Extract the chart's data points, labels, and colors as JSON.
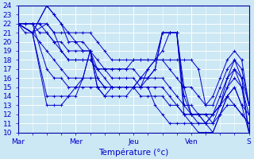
{
  "xlabel": "Température (°c)",
  "xlim": [
    0,
    96
  ],
  "ylim": [
    10,
    24
  ],
  "yticks": [
    10,
    11,
    12,
    13,
    14,
    15,
    16,
    17,
    18,
    19,
    20,
    21,
    22,
    23,
    24
  ],
  "xtick_positions": [
    0,
    24,
    48,
    72,
    96
  ],
  "xtick_labels": [
    "Mar",
    "Mer",
    "Jeu",
    "Ven",
    "S"
  ],
  "background_color": "#cce8f4",
  "grid_color": "#ffffff",
  "line_color": "#0000cc",
  "lines": [
    [
      0,
      22,
      3,
      21,
      6,
      21,
      9,
      20,
      12,
      19,
      15,
      18,
      18,
      17,
      21,
      16,
      24,
      16,
      27,
      16,
      30,
      16,
      33,
      16,
      36,
      15,
      39,
      15,
      42,
      15,
      45,
      15,
      48,
      15,
      51,
      14,
      54,
      14,
      57,
      14,
      60,
      14,
      63,
      13,
      66,
      13,
      69,
      12,
      72,
      12,
      75,
      12,
      78,
      12,
      81,
      12,
      84,
      13,
      87,
      14,
      90,
      15,
      93,
      13,
      96,
      10
    ],
    [
      0,
      22,
      3,
      22,
      6,
      22,
      9,
      21,
      12,
      21,
      15,
      20,
      18,
      19,
      21,
      18,
      24,
      18,
      27,
      18,
      30,
      18,
      33,
      17,
      36,
      17,
      39,
      16,
      42,
      16,
      45,
      16,
      48,
      16,
      51,
      15,
      54,
      15,
      57,
      15,
      60,
      15,
      63,
      14,
      66,
      13,
      69,
      12,
      72,
      12,
      75,
      11,
      78,
      11,
      81,
      12,
      84,
      13,
      87,
      15,
      90,
      17,
      93,
      15,
      96,
      12
    ],
    [
      0,
      22,
      3,
      22,
      6,
      22,
      9,
      22,
      12,
      21,
      15,
      20,
      18,
      20,
      21,
      19,
      24,
      19,
      27,
      19,
      30,
      19,
      33,
      18,
      36,
      17,
      39,
      17,
      42,
      17,
      45,
      17,
      48,
      17,
      51,
      16,
      54,
      16,
      57,
      16,
      60,
      16,
      63,
      15,
      66,
      14,
      69,
      13,
      72,
      13,
      75,
      12,
      78,
      11,
      81,
      12,
      84,
      14,
      87,
      16,
      90,
      18,
      93,
      16,
      96,
      13
    ],
    [
      0,
      22,
      3,
      22,
      6,
      22,
      9,
      22,
      12,
      22,
      15,
      21,
      18,
      21,
      21,
      21,
      24,
      21,
      27,
      21,
      30,
      21,
      33,
      20,
      36,
      19,
      39,
      18,
      42,
      18,
      45,
      18,
      48,
      18,
      51,
      18,
      54,
      18,
      57,
      18,
      60,
      18,
      63,
      17,
      66,
      16,
      69,
      15,
      72,
      15,
      75,
      14,
      78,
      13,
      81,
      14,
      84,
      16,
      87,
      18,
      90,
      19,
      93,
      18,
      96,
      13
    ],
    [
      0,
      22,
      6,
      21,
      12,
      24,
      15,
      23,
      18,
      22,
      21,
      21,
      24,
      20,
      27,
      20,
      30,
      19,
      33,
      17,
      36,
      16,
      39,
      15,
      42,
      15,
      45,
      15,
      48,
      15,
      51,
      15,
      54,
      17,
      57,
      18,
      60,
      19,
      63,
      21,
      66,
      21,
      69,
      15,
      72,
      12,
      75,
      12,
      78,
      12,
      81,
      12,
      84,
      13,
      87,
      16,
      90,
      17,
      93,
      16,
      96,
      10
    ],
    [
      0,
      22,
      6,
      21,
      12,
      24,
      15,
      23,
      18,
      22,
      21,
      20,
      24,
      20,
      27,
      19,
      30,
      19,
      33,
      16,
      36,
      15,
      39,
      15,
      42,
      15,
      45,
      15,
      48,
      15,
      51,
      16,
      54,
      17,
      57,
      18,
      60,
      21,
      63,
      21,
      66,
      21,
      69,
      14,
      72,
      12,
      75,
      12,
      78,
      11,
      81,
      11,
      84,
      13,
      87,
      15,
      90,
      16,
      93,
      15,
      96,
      10
    ],
    [
      0,
      22,
      6,
      21,
      12,
      22,
      15,
      21,
      18,
      19,
      21,
      18,
      24,
      18,
      27,
      18,
      30,
      18,
      33,
      17,
      36,
      17,
      39,
      17,
      42,
      17,
      45,
      17,
      48,
      18,
      51,
      18,
      54,
      18,
      57,
      18,
      60,
      18,
      63,
      18,
      66,
      18,
      69,
      18,
      72,
      18,
      75,
      17,
      78,
      13,
      81,
      13,
      84,
      15,
      87,
      17,
      90,
      18,
      93,
      17,
      96,
      13
    ],
    [
      0,
      22,
      6,
      21,
      12,
      14,
      15,
      14,
      18,
      14,
      21,
      14,
      24,
      15,
      27,
      16,
      30,
      19,
      33,
      15,
      36,
      14,
      39,
      15,
      42,
      15,
      45,
      15,
      48,
      15,
      51,
      16,
      54,
      16,
      57,
      17,
      60,
      21,
      63,
      21,
      66,
      21,
      69,
      13,
      72,
      12,
      75,
      12,
      78,
      12,
      81,
      11,
      84,
      12,
      87,
      14,
      90,
      13,
      93,
      12,
      96,
      11
    ],
    [
      0,
      22,
      6,
      21,
      12,
      13,
      15,
      13,
      18,
      13,
      21,
      14,
      24,
      14,
      27,
      16,
      30,
      19,
      33,
      15,
      36,
      14,
      39,
      14,
      42,
      14,
      45,
      14,
      48,
      15,
      51,
      15,
      54,
      16,
      57,
      17,
      60,
      21,
      63,
      21,
      66,
      21,
      69,
      12,
      72,
      11,
      75,
      11,
      78,
      11,
      81,
      10,
      84,
      12,
      87,
      13,
      90,
      13,
      93,
      12,
      96,
      11
    ],
    [
      0,
      22,
      6,
      22,
      12,
      17,
      15,
      16,
      18,
      16,
      21,
      15,
      24,
      15,
      27,
      15,
      30,
      15,
      33,
      15,
      36,
      15,
      39,
      15,
      42,
      15,
      45,
      15,
      48,
      15,
      51,
      15,
      54,
      15,
      57,
      13,
      60,
      12,
      63,
      11,
      66,
      11,
      69,
      11,
      72,
      11,
      75,
      10,
      78,
      10,
      81,
      10,
      84,
      12,
      87,
      14,
      90,
      15,
      93,
      13,
      96,
      12
    ]
  ]
}
